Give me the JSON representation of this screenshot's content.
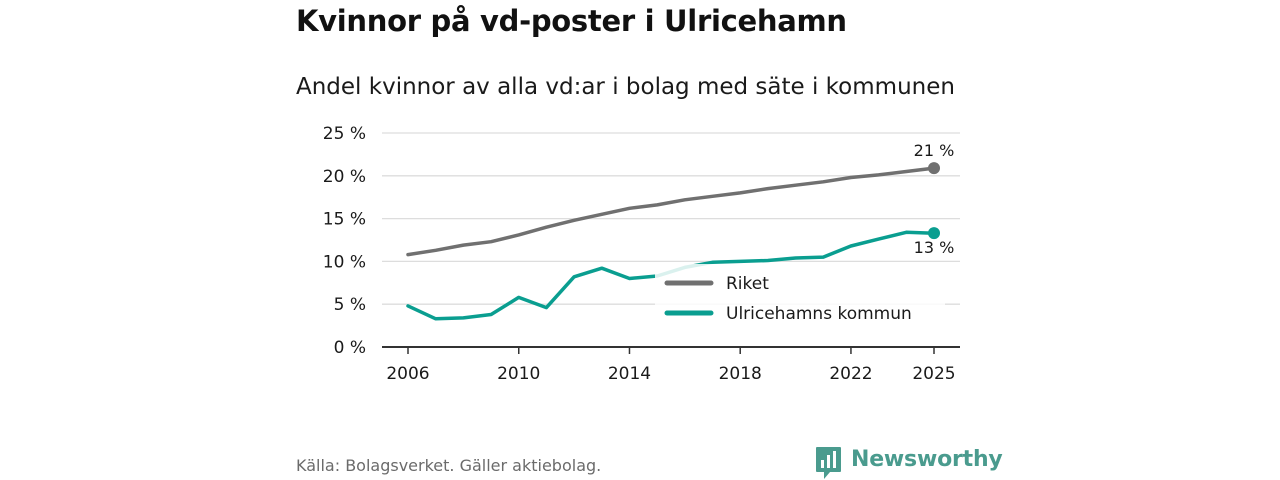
{
  "header": {
    "title": "Kvinnor på vd-poster i Ulricehamn",
    "subtitle": "Andel kvinnor av alla vd:ar i bolag med säte i kommunen"
  },
  "colors": {
    "riket": "#707070",
    "ulricehamn": "#0a9e90",
    "grid": "#dddddd",
    "axis": "#333333",
    "brand": "#4a9b8e"
  },
  "chart_data": {
    "type": "line",
    "title": "Kvinnor på vd-poster i Ulricehamn",
    "subtitle": "Andel kvinnor av alla vd:ar i bolag med säte i kommunen",
    "xlabel": "",
    "ylabel": "",
    "xlim": [
      2006,
      2025
    ],
    "ylim": [
      0,
      25
    ],
    "x_ticks": [
      2006,
      2010,
      2014,
      2018,
      2022,
      2025
    ],
    "x_tick_labels": [
      "2006",
      "2010",
      "2014",
      "2018",
      "2022",
      "2025"
    ],
    "y_ticks": [
      0,
      5,
      10,
      15,
      20,
      25
    ],
    "y_tick_labels": [
      "0 %",
      "5 %",
      "10 %",
      "15 %",
      "20 %",
      "25 %"
    ],
    "grid": true,
    "legend_position": "bottom-right",
    "x": [
      2006,
      2007,
      2008,
      2009,
      2010,
      2011,
      2012,
      2013,
      2014,
      2015,
      2016,
      2017,
      2018,
      2019,
      2020,
      2021,
      2022,
      2023,
      2024,
      2025
    ],
    "series": [
      {
        "name": "Riket",
        "color": "#707070",
        "values": [
          10.8,
          11.3,
          11.9,
          12.3,
          13.1,
          14.0,
          14.8,
          15.5,
          16.2,
          16.6,
          17.2,
          17.6,
          18.0,
          18.5,
          18.9,
          19.3,
          19.8,
          20.1,
          20.5,
          20.9
        ],
        "end_label": "21 %"
      },
      {
        "name": "Ulricehamns kommun",
        "color": "#0a9e90",
        "values": [
          4.8,
          3.3,
          3.4,
          3.8,
          5.8,
          4.6,
          8.2,
          9.2,
          8.0,
          8.3,
          9.3,
          9.9,
          10.0,
          10.1,
          10.4,
          10.5,
          11.8,
          12.6,
          13.4,
          13.3
        ],
        "end_label": "13 %"
      }
    ]
  },
  "footer": {
    "source": "Källa: Bolagsverket. Gäller aktiebolag.",
    "brand": "Newsworthy",
    "brand_icon": "newsworthy-logo-icon"
  }
}
